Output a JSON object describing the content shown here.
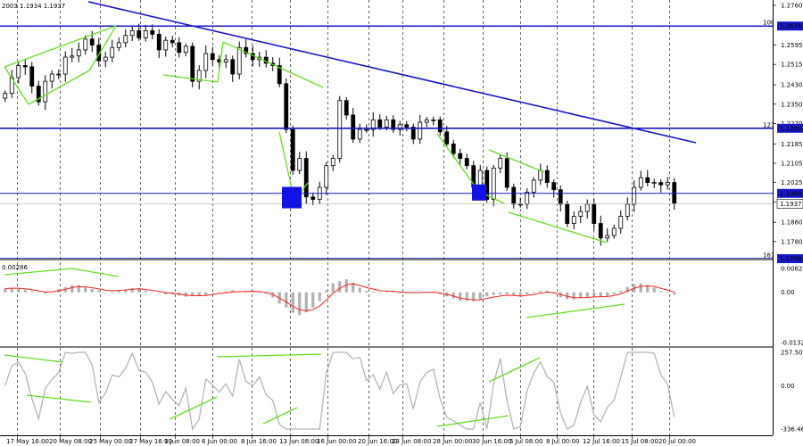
{
  "header": {
    "text": "2003 1.1934 1.1937"
  },
  "colors": {
    "bull_candle": "#000000",
    "bear_candle": "#000000",
    "trend_line": "#1818c8",
    "level_line": "#1818c8",
    "pattern_line": "#66dd22",
    "marker": "#1212e6",
    "macd_hist": "#b0b0b0",
    "macd_signal": "#ff2020",
    "cci_line": "#b5b5b5",
    "grid": "#000000"
  },
  "chart_data": [
    {
      "type": "candlestick",
      "panel": "price",
      "x_dates": [
        "17 May 16:00",
        "20 May 08:00",
        "25 May 00:00",
        "27 May 16:00",
        "1 Jun 08:00",
        "6 Jun 00:00",
        "8 Jun 16:00",
        "13 Jun 08:00",
        "16 Jun 00:00",
        "20 Jun 16:00",
        "23 Jun 08:00",
        "28 Jun 00:00",
        "30 Jun 16:00",
        "5 Jul 08:00",
        "8 Jul 00:00",
        "12 Jul 16:00",
        "15 Jul 08:00",
        "20 Jul 00:00"
      ],
      "ylim": [
        1.1709,
        1.276
      ],
      "y_ticks": [
        "1.2760",
        "1.2595",
        "1.2515",
        "1.2430",
        "1.2350",
        "1.2270",
        "1.2185",
        "1.2105",
        "1.2025",
        "1.1945",
        "1.1860",
        "1.1780"
      ],
      "close_path": [
        1.2395,
        1.246,
        1.251,
        1.2505,
        1.2425,
        1.236,
        1.2445,
        1.2475,
        1.2475,
        1.2545,
        1.255,
        1.2575,
        1.262,
        1.2595,
        1.253,
        1.2545,
        1.2585,
        1.2605,
        1.2635,
        1.2655,
        1.2625,
        1.2655,
        1.264,
        1.2575,
        1.2615,
        1.2605,
        1.2565,
        1.259,
        1.2445,
        1.249,
        1.256,
        1.2535,
        1.2525,
        1.2535,
        1.2475,
        1.2585,
        1.256,
        1.2535,
        1.2545,
        1.252,
        1.251,
        1.2435,
        1.2245,
        1.2075,
        1.2125,
        1.1965,
        1.1955,
        1.2005,
        1.2095,
        1.2125,
        1.2365,
        1.2305,
        1.2205,
        1.2245,
        1.2245,
        1.2285,
        1.2255,
        1.2285,
        1.2245,
        1.2265,
        1.2255,
        1.2205,
        1.2275,
        1.2285,
        1.2285,
        1.2235,
        1.2185,
        1.2145,
        1.2125,
        1.2095,
        1.2005,
        1.2075,
        1.1955,
        1.2085,
        1.2125,
        1.2005,
        1.1935,
        1.1935,
        1.1985,
        1.2035,
        1.2075,
        1.2025,
        1.1995,
        1.1935,
        1.1855,
        1.1885,
        1.1905,
        1.1935,
        1.1855,
        1.1795,
        1.1805,
        1.1835,
        1.1885,
        1.1935,
        1.2005,
        1.2045,
        1.2025,
        1.2025,
        1.2015,
        1.2025,
        1.1937
      ],
      "levels": [
        {
          "price": 1.2674,
          "label": "1.2674",
          "fib": "100.0"
        },
        {
          "price": 1.225,
          "label": "1.2250",
          "fib": "127.2"
        },
        {
          "price": 1.198,
          "label": "1.1980"
        },
        {
          "price": 1.1937,
          "label": "1.1937",
          "current": true
        },
        {
          "price": 1.1709,
          "label": "1.1709",
          "fib": "161.8"
        }
      ],
      "trend_line": {
        "from": [
          "17 May 16:00",
          1.2775
        ],
        "to": [
          "20 Jul 00:00",
          1.219
        ]
      },
      "markers": [
        {
          "date": "13 Jun 08:00",
          "price": 1.1955
        },
        {
          "date": "30 Jun 16:00",
          "price": 1.1965
        }
      ]
    },
    {
      "type": "histogram",
      "panel": "MACD",
      "label": "0.00286",
      "ylim": [
        -0.01323,
        0.00628
      ],
      "y_ticks": [
        "0.00628",
        "0.00",
        "-0.01323"
      ]
    },
    {
      "type": "line",
      "panel": "CCI",
      "ylim": [
        -336.468,
        257.5097
      ],
      "y_ticks": [
        "257.5097",
        "0.00",
        "-336.468"
      ]
    }
  ]
}
